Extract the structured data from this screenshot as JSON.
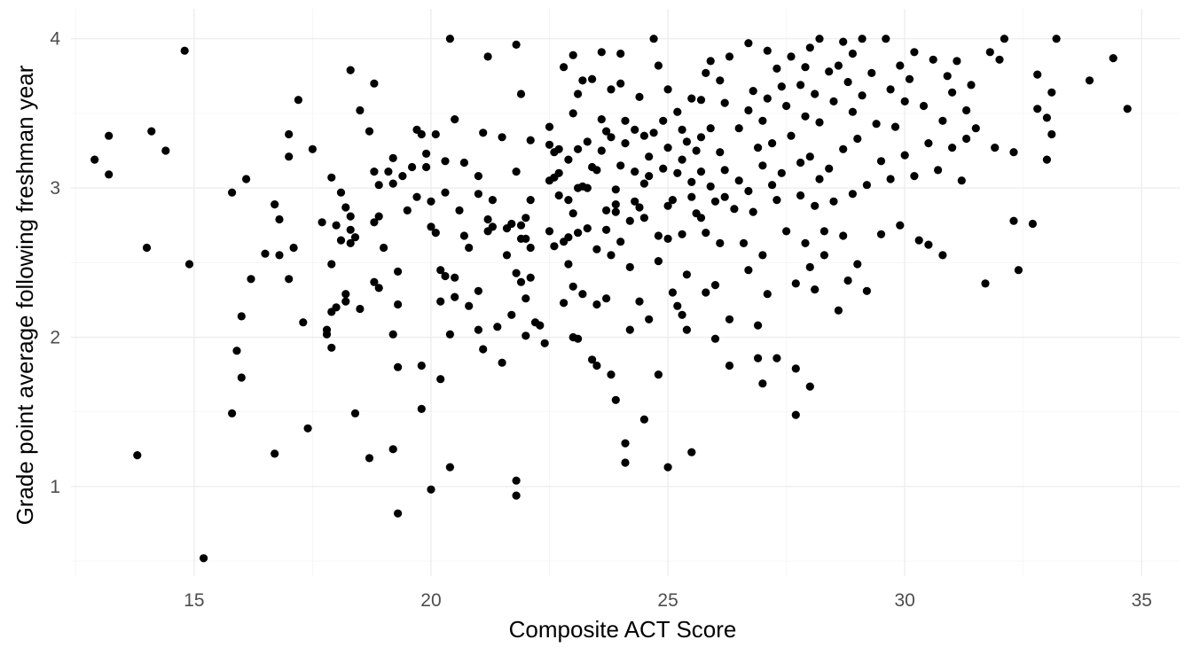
{
  "chart_data": {
    "type": "scatter",
    "title": "",
    "xlabel": "Composite ACT Score",
    "ylabel": "Grade point average following freshman year",
    "xlim": [
      12.4,
      35.8
    ],
    "ylim": [
      0.4,
      4.2
    ],
    "x_ticks": [
      15,
      20,
      25,
      30,
      35
    ],
    "y_ticks": [
      1,
      2,
      3,
      4
    ],
    "grid": true,
    "point_color": "#000000",
    "points": [
      [
        12.9,
        3.19
      ],
      [
        13.2,
        3.35
      ],
      [
        13.2,
        3.09
      ],
      [
        13.8,
        1.21
      ],
      [
        14.0,
        2.6
      ],
      [
        14.1,
        3.38
      ],
      [
        14.4,
        3.25
      ],
      [
        14.8,
        3.92
      ],
      [
        14.9,
        2.49
      ],
      [
        15.2,
        0.52
      ],
      [
        15.8,
        2.97
      ],
      [
        15.8,
        1.49
      ],
      [
        15.9,
        1.91
      ],
      [
        16.0,
        2.14
      ],
      [
        16.0,
        1.73
      ],
      [
        16.1,
        3.06
      ],
      [
        16.2,
        2.39
      ],
      [
        16.5,
        2.56
      ],
      [
        16.7,
        1.22
      ],
      [
        16.7,
        2.89
      ],
      [
        16.8,
        2.79
      ],
      [
        16.8,
        2.55
      ],
      [
        17.0,
        3.36
      ],
      [
        17.0,
        3.21
      ],
      [
        17.0,
        2.39
      ],
      [
        17.1,
        2.6
      ],
      [
        17.2,
        3.59
      ],
      [
        17.3,
        2.1
      ],
      [
        17.4,
        1.39
      ],
      [
        17.5,
        3.26
      ],
      [
        17.7,
        2.77
      ],
      [
        17.8,
        2.05
      ],
      [
        17.8,
        2.02
      ],
      [
        17.9,
        3.07
      ],
      [
        17.9,
        2.49
      ],
      [
        17.9,
        1.93
      ],
      [
        17.9,
        2.17
      ],
      [
        18.0,
        2.2
      ],
      [
        18.0,
        2.75
      ],
      [
        18.1,
        2.97
      ],
      [
        18.1,
        2.65
      ],
      [
        18.2,
        2.29
      ],
      [
        18.2,
        2.24
      ],
      [
        18.2,
        2.87
      ],
      [
        18.3,
        2.72
      ],
      [
        18.3,
        2.81
      ],
      [
        18.3,
        3.79
      ],
      [
        18.3,
        2.63
      ],
      [
        18.4,
        2.67
      ],
      [
        18.4,
        1.49
      ],
      [
        18.5,
        3.52
      ],
      [
        18.5,
        2.19
      ],
      [
        18.7,
        1.19
      ],
      [
        18.7,
        3.38
      ],
      [
        18.8,
        3.7
      ],
      [
        18.8,
        2.77
      ],
      [
        18.8,
        2.37
      ],
      [
        18.8,
        3.11
      ],
      [
        18.9,
        3.02
      ],
      [
        18.9,
        2.33
      ],
      [
        18.9,
        2.81
      ],
      [
        19.0,
        2.6
      ],
      [
        19.1,
        3.11
      ],
      [
        19.2,
        3.2
      ],
      [
        19.2,
        2.02
      ],
      [
        19.2,
        3.03
      ],
      [
        19.2,
        1.25
      ],
      [
        19.3,
        2.44
      ],
      [
        19.3,
        1.8
      ],
      [
        19.3,
        2.22
      ],
      [
        19.3,
        0.82
      ],
      [
        19.4,
        3.08
      ],
      [
        19.5,
        2.85
      ],
      [
        19.6,
        3.14
      ],
      [
        19.7,
        2.94
      ],
      [
        19.7,
        3.39
      ],
      [
        19.8,
        3.36
      ],
      [
        19.8,
        1.52
      ],
      [
        19.8,
        1.81
      ],
      [
        19.9,
        3.23
      ],
      [
        19.9,
        3.14
      ],
      [
        20.0,
        2.91
      ],
      [
        20.0,
        2.74
      ],
      [
        20.0,
        0.98
      ],
      [
        20.1,
        2.7
      ],
      [
        20.1,
        3.36
      ],
      [
        20.2,
        1.72
      ],
      [
        20.2,
        2.24
      ],
      [
        20.2,
        2.45
      ],
      [
        20.3,
        3.18
      ],
      [
        20.3,
        2.97
      ],
      [
        20.3,
        2.41
      ],
      [
        20.4,
        1.13
      ],
      [
        20.4,
        4.0
      ],
      [
        20.4,
        2.02
      ],
      [
        20.5,
        3.46
      ],
      [
        20.5,
        2.4
      ],
      [
        20.5,
        2.27
      ],
      [
        20.6,
        2.85
      ],
      [
        20.7,
        2.68
      ],
      [
        20.7,
        3.17
      ],
      [
        20.8,
        2.6
      ],
      [
        20.8,
        2.21
      ],
      [
        21.0,
        3.08
      ],
      [
        21.0,
        2.96
      ],
      [
        21.0,
        2.05
      ],
      [
        21.0,
        2.31
      ],
      [
        21.1,
        1.92
      ],
      [
        21.1,
        3.37
      ],
      [
        21.2,
        2.71
      ],
      [
        21.2,
        2.79
      ],
      [
        21.2,
        3.88
      ],
      [
        21.3,
        2.92
      ],
      [
        21.3,
        2.74
      ],
      [
        21.4,
        2.07
      ],
      [
        21.5,
        3.34
      ],
      [
        21.5,
        1.83
      ],
      [
        21.6,
        2.55
      ],
      [
        21.6,
        2.73
      ],
      [
        21.7,
        2.15
      ],
      [
        21.7,
        2.76
      ],
      [
        21.8,
        3.11
      ],
      [
        21.8,
        2.43
      ],
      [
        21.8,
        1.04
      ],
      [
        21.8,
        0.94
      ],
      [
        21.8,
        3.96
      ],
      [
        21.9,
        2.66
      ],
      [
        21.9,
        2.37
      ],
      [
        21.9,
        2.75
      ],
      [
        21.9,
        3.63
      ],
      [
        22.0,
        2.26
      ],
      [
        22.0,
        2.01
      ],
      [
        22.0,
        2.8
      ],
      [
        22.0,
        2.66
      ],
      [
        22.1,
        3.32
      ],
      [
        22.1,
        2.92
      ],
      [
        22.1,
        2.6
      ],
      [
        22.1,
        2.4
      ],
      [
        22.2,
        2.1
      ],
      [
        22.3,
        2.08
      ],
      [
        22.4,
        1.96
      ],
      [
        22.5,
        2.71
      ],
      [
        22.5,
        3.41
      ],
      [
        22.5,
        3.29
      ],
      [
        22.5,
        3.05
      ],
      [
        22.6,
        3.24
      ],
      [
        22.6,
        3.07
      ],
      [
        22.6,
        2.61
      ],
      [
        22.7,
        2.95
      ],
      [
        22.7,
        3.26
      ],
      [
        22.7,
        3.1
      ],
      [
        22.8,
        3.81
      ],
      [
        22.8,
        2.64
      ],
      [
        22.8,
        2.23
      ],
      [
        22.9,
        3.19
      ],
      [
        22.9,
        2.92
      ],
      [
        22.9,
        2.49
      ],
      [
        22.9,
        2.67
      ],
      [
        23.0,
        3.89
      ],
      [
        23.0,
        3.5
      ],
      [
        23.0,
        2.83
      ],
      [
        23.0,
        2.34
      ],
      [
        23.0,
        2.0
      ],
      [
        23.1,
        3.63
      ],
      [
        23.1,
        3.26
      ],
      [
        23.1,
        3.0
      ],
      [
        23.1,
        2.7
      ],
      [
        23.1,
        1.99
      ],
      [
        23.2,
        3.72
      ],
      [
        23.2,
        2.29
      ],
      [
        23.2,
        3.01
      ],
      [
        23.3,
        3.31
      ],
      [
        23.3,
        3.0
      ],
      [
        23.3,
        2.73
      ],
      [
        23.4,
        3.14
      ],
      [
        23.4,
        1.85
      ],
      [
        23.4,
        3.73
      ],
      [
        23.5,
        3.12
      ],
      [
        23.5,
        2.59
      ],
      [
        23.5,
        2.22
      ],
      [
        23.5,
        1.81
      ],
      [
        23.6,
        3.91
      ],
      [
        23.6,
        3.46
      ],
      [
        23.6,
        3.25
      ],
      [
        23.7,
        2.85
      ],
      [
        23.7,
        2.72
      ],
      [
        23.7,
        3.38
      ],
      [
        23.7,
        2.26
      ],
      [
        23.8,
        3.66
      ],
      [
        23.8,
        3.34
      ],
      [
        23.8,
        2.55
      ],
      [
        23.8,
        1.75
      ],
      [
        23.9,
        2.99
      ],
      [
        23.9,
        2.89
      ],
      [
        23.9,
        2.84
      ],
      [
        23.9,
        1.58
      ],
      [
        24.0,
        3.9
      ],
      [
        24.0,
        3.7
      ],
      [
        24.0,
        3.15
      ],
      [
        24.0,
        2.64
      ],
      [
        24.1,
        1.29
      ],
      [
        24.1,
        1.16
      ],
      [
        24.1,
        3.45
      ],
      [
        24.1,
        3.3
      ],
      [
        24.2,
        2.78
      ],
      [
        24.2,
        2.47
      ],
      [
        24.2,
        2.05
      ],
      [
        24.3,
        3.39
      ],
      [
        24.3,
        3.11
      ],
      [
        24.3,
        2.91
      ],
      [
        24.4,
        2.24
      ],
      [
        24.4,
        3.61
      ],
      [
        24.4,
        2.87
      ],
      [
        24.5,
        1.45
      ],
      [
        24.5,
        3.35
      ],
      [
        24.5,
        3.03
      ],
      [
        24.5,
        2.8
      ],
      [
        24.6,
        3.08
      ],
      [
        24.6,
        2.12
      ],
      [
        24.6,
        3.21
      ],
      [
        24.7,
        4.0
      ],
      [
        24.7,
        3.37
      ],
      [
        24.8,
        2.68
      ],
      [
        24.8,
        1.75
      ],
      [
        24.8,
        2.51
      ],
      [
        24.8,
        3.82
      ],
      [
        24.9,
        3.45
      ],
      [
        24.9,
        3.13
      ],
      [
        25.0,
        3.27
      ],
      [
        25.0,
        2.88
      ],
      [
        25.0,
        3.66
      ],
      [
        25.0,
        2.66
      ],
      [
        25.0,
        1.13
      ],
      [
        25.1,
        2.3
      ],
      [
        25.1,
        2.92
      ],
      [
        25.2,
        3.1
      ],
      [
        25.2,
        3.51
      ],
      [
        25.2,
        2.21
      ],
      [
        25.3,
        3.39
      ],
      [
        25.3,
        3.19
      ],
      [
        25.3,
        2.69
      ],
      [
        25.3,
        2.15
      ],
      [
        25.4,
        3.31
      ],
      [
        25.4,
        2.42
      ],
      [
        25.4,
        2.05
      ],
      [
        25.5,
        3.6
      ],
      [
        25.5,
        3.04
      ],
      [
        25.5,
        2.94
      ],
      [
        25.5,
        1.23
      ],
      [
        25.6,
        3.25
      ],
      [
        25.6,
        2.83
      ],
      [
        25.7,
        3.59
      ],
      [
        25.7,
        3.34
      ],
      [
        25.7,
        3.11
      ],
      [
        25.7,
        2.8
      ],
      [
        25.8,
        3.77
      ],
      [
        25.8,
        2.7
      ],
      [
        25.8,
        2.3
      ],
      [
        25.9,
        3.85
      ],
      [
        25.9,
        3.4
      ],
      [
        25.9,
        3.01
      ],
      [
        26.0,
        2.91
      ],
      [
        26.0,
        2.35
      ],
      [
        26.0,
        1.99
      ],
      [
        26.1,
        3.72
      ],
      [
        26.1,
        3.24
      ],
      [
        26.1,
        2.63
      ],
      [
        26.2,
        3.57
      ],
      [
        26.2,
        3.12
      ],
      [
        26.2,
        2.94
      ],
      [
        26.3,
        3.88
      ],
      [
        26.3,
        2.12
      ],
      [
        26.3,
        1.81
      ],
      [
        26.4,
        2.86
      ],
      [
        26.5,
        3.4
      ],
      [
        26.5,
        3.05
      ],
      [
        26.6,
        2.63
      ],
      [
        26.7,
        3.97
      ],
      [
        26.7,
        3.52
      ],
      [
        26.7,
        2.98
      ],
      [
        26.7,
        2.45
      ],
      [
        26.8,
        3.65
      ],
      [
        26.8,
        2.84
      ],
      [
        26.9,
        3.27
      ],
      [
        26.9,
        2.08
      ],
      [
        26.9,
        1.86
      ],
      [
        27.0,
        3.45
      ],
      [
        27.0,
        3.15
      ],
      [
        27.0,
        2.55
      ],
      [
        27.0,
        1.69
      ],
      [
        27.1,
        3.92
      ],
      [
        27.1,
        3.6
      ],
      [
        27.1,
        2.29
      ],
      [
        27.2,
        3.3
      ],
      [
        27.2,
        3.02
      ],
      [
        27.3,
        3.8
      ],
      [
        27.3,
        2.92
      ],
      [
        27.3,
        1.86
      ],
      [
        27.4,
        3.68
      ],
      [
        27.4,
        3.1
      ],
      [
        27.5,
        3.55
      ],
      [
        27.5,
        2.71
      ],
      [
        27.6,
        3.88
      ],
      [
        27.6,
        3.35
      ],
      [
        27.7,
        2.36
      ],
      [
        27.7,
        1.79
      ],
      [
        27.7,
        1.48
      ],
      [
        27.8,
        3.69
      ],
      [
        27.8,
        3.17
      ],
      [
        27.8,
        2.95
      ],
      [
        27.9,
        3.81
      ],
      [
        27.9,
        3.48
      ],
      [
        27.9,
        2.63
      ],
      [
        28.0,
        3.94
      ],
      [
        28.0,
        3.21
      ],
      [
        28.0,
        2.47
      ],
      [
        28.0,
        1.67
      ],
      [
        28.1,
        3.63
      ],
      [
        28.1,
        2.88
      ],
      [
        28.1,
        2.32
      ],
      [
        28.2,
        4.0
      ],
      [
        28.2,
        3.44
      ],
      [
        28.2,
        3.06
      ],
      [
        28.3,
        2.71
      ],
      [
        28.3,
        2.55
      ],
      [
        28.4,
        3.78
      ],
      [
        28.4,
        3.13
      ],
      [
        28.5,
        3.58
      ],
      [
        28.5,
        2.91
      ],
      [
        28.6,
        3.82
      ],
      [
        28.6,
        2.18
      ],
      [
        28.7,
        3.98
      ],
      [
        28.7,
        3.26
      ],
      [
        28.7,
        2.68
      ],
      [
        28.8,
        3.71
      ],
      [
        28.8,
        2.38
      ],
      [
        28.9,
        3.9
      ],
      [
        28.9,
        3.51
      ],
      [
        28.9,
        2.96
      ],
      [
        29.0,
        3.33
      ],
      [
        29.0,
        2.49
      ],
      [
        29.1,
        4.0
      ],
      [
        29.1,
        3.62
      ],
      [
        29.2,
        3.02
      ],
      [
        29.2,
        2.31
      ],
      [
        29.3,
        3.77
      ],
      [
        29.4,
        3.43
      ],
      [
        29.5,
        3.18
      ],
      [
        29.5,
        2.69
      ],
      [
        29.6,
        4.0
      ],
      [
        29.7,
        3.66
      ],
      [
        29.7,
        3.06
      ],
      [
        29.8,
        3.41
      ],
      [
        29.9,
        3.82
      ],
      [
        29.9,
        2.75
      ],
      [
        30.0,
        3.58
      ],
      [
        30.0,
        3.22
      ],
      [
        30.1,
        3.73
      ],
      [
        30.2,
        3.91
      ],
      [
        30.2,
        3.08
      ],
      [
        30.3,
        2.65
      ],
      [
        30.4,
        3.55
      ],
      [
        30.5,
        3.3
      ],
      [
        30.5,
        2.62
      ],
      [
        30.6,
        3.86
      ],
      [
        30.7,
        3.12
      ],
      [
        30.8,
        3.45
      ],
      [
        30.8,
        2.55
      ],
      [
        30.9,
        3.75
      ],
      [
        31.0,
        3.64
      ],
      [
        31.0,
        3.27
      ],
      [
        31.1,
        3.85
      ],
      [
        31.2,
        3.05
      ],
      [
        31.3,
        3.52
      ],
      [
        31.3,
        3.33
      ],
      [
        31.4,
        3.69
      ],
      [
        31.5,
        3.4
      ],
      [
        31.7,
        2.36
      ],
      [
        31.8,
        3.91
      ],
      [
        31.9,
        3.27
      ],
      [
        32.0,
        3.86
      ],
      [
        32.1,
        4.0
      ],
      [
        32.3,
        3.24
      ],
      [
        32.3,
        2.78
      ],
      [
        32.4,
        2.45
      ],
      [
        32.7,
        2.76
      ],
      [
        32.8,
        3.76
      ],
      [
        32.8,
        3.53
      ],
      [
        33.0,
        3.47
      ],
      [
        33.0,
        3.19
      ],
      [
        33.1,
        3.64
      ],
      [
        33.1,
        3.36
      ],
      [
        33.2,
        4.0
      ],
      [
        33.9,
        3.72
      ],
      [
        34.4,
        3.87
      ],
      [
        34.7,
        3.53
      ]
    ]
  }
}
